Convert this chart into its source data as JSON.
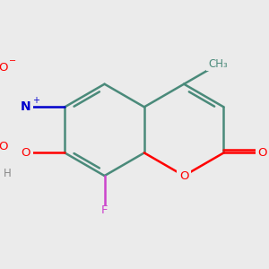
{
  "background_color": "#ebebeb",
  "bond_color": "#4a8a7a",
  "bond_width": 1.8,
  "atom_colors": {
    "O": "#ff0000",
    "N": "#0000cc",
    "F": "#cc44cc",
    "H": "#888888",
    "C": "#4a8a7a"
  },
  "figsize": [
    3.0,
    3.0
  ],
  "dpi": 100
}
